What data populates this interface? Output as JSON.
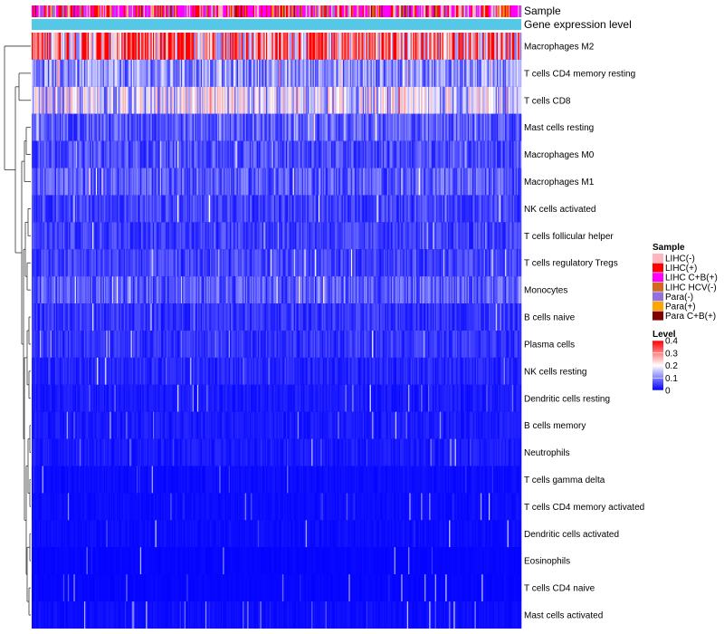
{
  "chart_data": {
    "type": "heatmap",
    "annotation_rows": [
      {
        "label": "Sample"
      },
      {
        "label": "Gene expression level"
      }
    ],
    "rows": [
      {
        "name": "Macrophages M2",
        "mean": 0.3
      },
      {
        "name": "T cells CD4 memory resting",
        "mean": 0.11
      },
      {
        "name": "T cells CD8",
        "mean": 0.16
      },
      {
        "name": "Mast cells resting",
        "mean": 0.07
      },
      {
        "name": "Macrophages M0",
        "mean": 0.06
      },
      {
        "name": "Macrophages M1",
        "mean": 0.07
      },
      {
        "name": "NK cells activated",
        "mean": 0.05
      },
      {
        "name": "T cells follicular helper",
        "mean": 0.05
      },
      {
        "name": "T cells regulatory  Tregs",
        "mean": 0.05
      },
      {
        "name": "Monocytes",
        "mean": 0.07
      },
      {
        "name": "B cells naive",
        "mean": 0.04
      },
      {
        "name": "Plasma cells",
        "mean": 0.04
      },
      {
        "name": "NK cells resting",
        "mean": 0.03
      },
      {
        "name": "Dendritic cells resting",
        "mean": 0.02
      },
      {
        "name": "B cells memory",
        "mean": 0.02
      },
      {
        "name": "Neutrophils",
        "mean": 0.02
      },
      {
        "name": "T cells gamma delta",
        "mean": 0.01
      },
      {
        "name": "T cells CD4 memory activated",
        "mean": 0.01
      },
      {
        "name": "Dendritic cells activated",
        "mean": 0.01
      },
      {
        "name": "Eosinophils",
        "mean": 0.005
      },
      {
        "name": "T cells CD4 naive",
        "mean": 0.005
      },
      {
        "name": "Mast cells activated",
        "mean": 0.01
      }
    ],
    "sample_legend": {
      "title": "Sample",
      "items": [
        {
          "label": "LIHC(-)",
          "color": "#ffb6c1"
        },
        {
          "label": "LIHC(+)",
          "color": "#ff0000"
        },
        {
          "label": "LIHC C+B(+)",
          "color": "#ff00ff"
        },
        {
          "label": "LIHC HCV(-)",
          "color": "#d2691e"
        },
        {
          "label": "Para(-)",
          "color": "#9370db"
        },
        {
          "label": "Para(+)",
          "color": "#ffa500"
        },
        {
          "label": "Para C+B(+)",
          "color": "#800000"
        }
      ]
    },
    "level_legend": {
      "title": "Level",
      "ticks": [
        {
          "label": "0.4",
          "value": 0.4
        },
        {
          "label": "0.3",
          "value": 0.3
        },
        {
          "label": "0.2",
          "value": 0.2
        },
        {
          "label": "0.1",
          "value": 0.1
        },
        {
          "label": "0",
          "value": 0
        }
      ],
      "range": [
        0,
        0.4
      ],
      "colors": [
        "#0000ff",
        "#ffffff",
        "#ff0000"
      ]
    },
    "gene_expression_color": "#55c8e8",
    "n_samples": 420
  }
}
